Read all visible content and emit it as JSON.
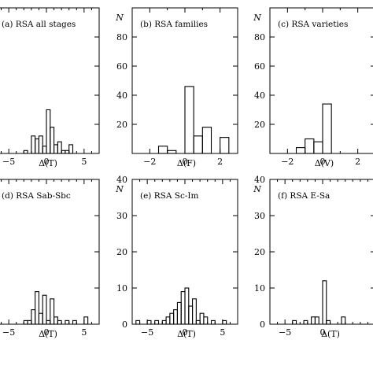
{
  "chart_data": [
    {
      "type": "histogram",
      "title": "(a) RSA all stages",
      "xlabel": "Δ(T)",
      "ylabel": "",
      "xlim": [
        -7,
        7
      ],
      "ylim": [
        0,
        100
      ],
      "xticks": [
        -5,
        0,
        5
      ],
      "yticks": [],
      "bins": {
        "edges": [
          -7,
          -6.5,
          -6,
          -5.5,
          -5,
          -4.5,
          -4,
          -3.5,
          -3,
          -2.5,
          -2,
          -1.5,
          -1,
          -0.5,
          0,
          0.5,
          1,
          1.5,
          2,
          2.5,
          3,
          3.5,
          4,
          4.5,
          5,
          5.5,
          6,
          6.5,
          7
        ],
        "counts": [
          0,
          0,
          0,
          0,
          0,
          0,
          0,
          0,
          2,
          0,
          12,
          10,
          12,
          5,
          30,
          18,
          6,
          8,
          2,
          2,
          6,
          0,
          0,
          0,
          0,
          0,
          0,
          0
        ]
      }
    },
    {
      "type": "histogram",
      "title": "(b) RSA families",
      "xlabel": "Δ(F)",
      "ylabel": "N",
      "xlim": [
        -3,
        3
      ],
      "ylim": [
        0,
        100
      ],
      "xticks": [
        -2,
        0,
        2
      ],
      "yticks": [
        20,
        40,
        60,
        80
      ],
      "bins": {
        "edges": [
          -3,
          -2.5,
          -2,
          -1.5,
          -1,
          -0.5,
          0,
          0.5,
          1,
          1.5,
          2,
          2.5,
          3
        ],
        "counts": [
          0,
          0,
          0,
          5,
          2,
          0,
          46,
          12,
          18,
          0,
          11,
          0
        ]
      }
    },
    {
      "type": "histogram",
      "title": "(c) RSA varieties",
      "xlabel": "Δ(V)",
      "ylabel": "N",
      "xlim": [
        -3,
        3
      ],
      "ylim": [
        0,
        100
      ],
      "xticks": [
        -2,
        0,
        2
      ],
      "yticks": [
        20,
        40,
        60,
        80
      ],
      "bins": {
        "edges": [
          -3,
          -2.5,
          -2,
          -1.5,
          -1,
          -0.5,
          0,
          0.5,
          1,
          1.5,
          2,
          2.5,
          3
        ],
        "counts": [
          0,
          0,
          0,
          4,
          10,
          8,
          34,
          0,
          0,
          0,
          0,
          0
        ]
      }
    },
    {
      "type": "histogram",
      "title": "(d) RSA Sab-Sbc",
      "xlabel": "Δ(T)",
      "ylabel": "",
      "xlim": [
        -7,
        7
      ],
      "ylim": [
        0,
        40
      ],
      "xticks": [
        -5,
        0,
        5
      ],
      "yticks": [],
      "bins": {
        "edges": [
          -7,
          -6.5,
          -6,
          -5.5,
          -5,
          -4.5,
          -4,
          -3.5,
          -3,
          -2.5,
          -2,
          -1.5,
          -1,
          -0.5,
          0,
          0.5,
          1,
          1.5,
          2,
          2.5,
          3,
          3.5,
          4,
          4.5,
          5,
          5.5,
          6,
          6.5,
          7
        ],
        "counts": [
          0,
          0,
          0,
          0,
          0,
          0,
          0,
          0,
          1,
          1,
          4,
          9,
          3,
          8,
          1,
          7,
          2,
          1,
          0,
          1,
          0,
          1,
          0,
          0,
          2,
          0,
          0,
          0
        ]
      }
    },
    {
      "type": "histogram",
      "title": "(e) RSA Sc-Im",
      "xlabel": "Δ(T)",
      "ylabel": "N",
      "xlim": [
        -7,
        7
      ],
      "ylim": [
        0,
        40
      ],
      "xticks": [
        -5,
        0,
        5
      ],
      "yticks": [
        0,
        10,
        20,
        30,
        40
      ],
      "bins": {
        "edges": [
          -7,
          -6.5,
          -6,
          -5.5,
          -5,
          -4.5,
          -4,
          -3.5,
          -3,
          -2.5,
          -2,
          -1.5,
          -1,
          -0.5,
          0,
          0.5,
          1,
          1.5,
          2,
          2.5,
          3,
          3.5,
          4,
          4.5,
          5,
          5.5,
          6,
          6.5,
          7
        ],
        "counts": [
          0,
          1,
          0,
          0,
          1,
          0,
          1,
          0,
          1,
          2,
          3,
          4,
          6,
          9,
          10,
          5,
          7,
          1,
          3,
          2,
          0,
          1,
          0,
          0,
          1,
          0,
          0,
          0
        ]
      }
    },
    {
      "type": "histogram",
      "title": "(f) RSA E-Sa",
      "xlabel": "Δ(T)",
      "ylabel": "N",
      "xlim": [
        -7,
        7
      ],
      "ylim": [
        0,
        40
      ],
      "xticks": [
        -5,
        0
      ],
      "yticks": [
        0,
        10,
        20,
        30,
        40
      ],
      "bins": {
        "edges": [
          -7,
          -6.5,
          -6,
          -5.5,
          -5,
          -4.5,
          -4,
          -3.5,
          -3,
          -2.5,
          -2,
          -1.5,
          -1,
          -0.5,
          0,
          0.5,
          1,
          1.5,
          2,
          2.5,
          3,
          3.5,
          4,
          4.5,
          5,
          5.5,
          6,
          6.5,
          7
        ],
        "counts": [
          0,
          0,
          0,
          0,
          0,
          0,
          1,
          0,
          0,
          1,
          0,
          2,
          2,
          0,
          12,
          1,
          0,
          0,
          0,
          2,
          0,
          0,
          0,
          0,
          0,
          0,
          0,
          0
        ]
      }
    }
  ]
}
